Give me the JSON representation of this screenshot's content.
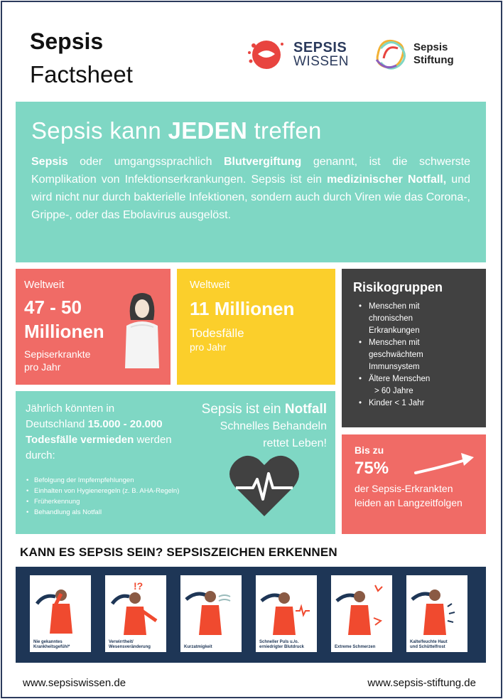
{
  "header": {
    "title_line1": "Sepsis",
    "title_line2": "Factsheet",
    "logo1_line1": "SEPSIS",
    "logo1_line2": "WISSEN",
    "logo2_line1": "Sepsis",
    "logo2_line2": "Stiftung"
  },
  "intro": {
    "heading_pre": "Sepsis kann ",
    "heading_bold": "JEDEN",
    "heading_post": " treffen",
    "p_bold1": "Sepsis",
    "p_t1": " oder umgangssprachlich ",
    "p_bold2": "Blutvergiftung",
    "p_t2": " genannt, ist die schwerste Komplikation von Infektionserkrankungen. Sepsis ist ein ",
    "p_bold3": "medizinischer Notfall,",
    "p_t3": " und wird nicht nur durch bakterielle Infektionen, sondern auch durch Viren wie das Corona-, Grippe-, oder das Ebolavirus ausgelöst."
  },
  "stat1": {
    "label": "Weltweit",
    "big_line1": "47 - 50",
    "big_line2": "Millionen",
    "sub_line1": "Sepiserkrankte",
    "sub_line2": "pro Jahr"
  },
  "stat2": {
    "label": "Weltweit",
    "big": "11 Millionen",
    "sub_line1": "Todesfälle",
    "sub_line2": "pro Jahr"
  },
  "risk": {
    "title": "Risikogruppen",
    "items": [
      "Menschen mit",
      "chronischen",
      "Erkrankungen",
      "Menschen mit",
      "geschwächtem",
      "Immunsystem",
      "Ältere Menschen",
      "> 60 Jahre",
      "Kinder < 1 Jahr"
    ]
  },
  "prevent": {
    "t1": "Jährlich könnten in Deutschland ",
    "b1": "15.000 - 20.000 Todesfälle vermieden",
    "t2": " werden durch:",
    "list": [
      "Befolgung der Impfempfehlungen",
      "Einhalten von Hygieneregeln (z. B. AHA-Regeln)",
      "Früherkennung",
      "Behandlung als Notfall"
    ],
    "right_pre": "Sepsis ist ein ",
    "right_bold": "Notfall",
    "right_l2": "Schnelles Behandeln",
    "right_l3": "rettet Leben!"
  },
  "longterm": {
    "label": "Bis zu",
    "big": "75%",
    "text_line1": "der Sepsis-Erkrankten",
    "text_line2": "leiden an Langzeitfolgen"
  },
  "signs": {
    "title": "KANN ES SEPSIS SEIN? SEPSISZEICHEN ERKENNEN",
    "cards": [
      {
        "l1": "Nie gekanntes",
        "l2": "Krankheitsgefühl*"
      },
      {
        "l1": "Verwirrtheit/",
        "l2": "Wesensveränderung"
      },
      {
        "l1": "Kurzatmigkeit",
        "l2": ""
      },
      {
        "l1": "Schneller Puls u./o.",
        "l2": "erniedrigter Blutdruck"
      },
      {
        "l1": "Extreme Schmerzen",
        "l2": ""
      },
      {
        "l1": "Kalte/feuchte Haut",
        "l2": "und Schüttelfrost"
      }
    ]
  },
  "footer": {
    "left": "www.sepsiswissen.de",
    "right": "www.sepsis-stiftung.de"
  },
  "colors": {
    "teal": "#7fd7c4",
    "red": "#f06b66",
    "yellow": "#fbcf2b",
    "dark": "#414141",
    "navy": "#1e3656"
  }
}
